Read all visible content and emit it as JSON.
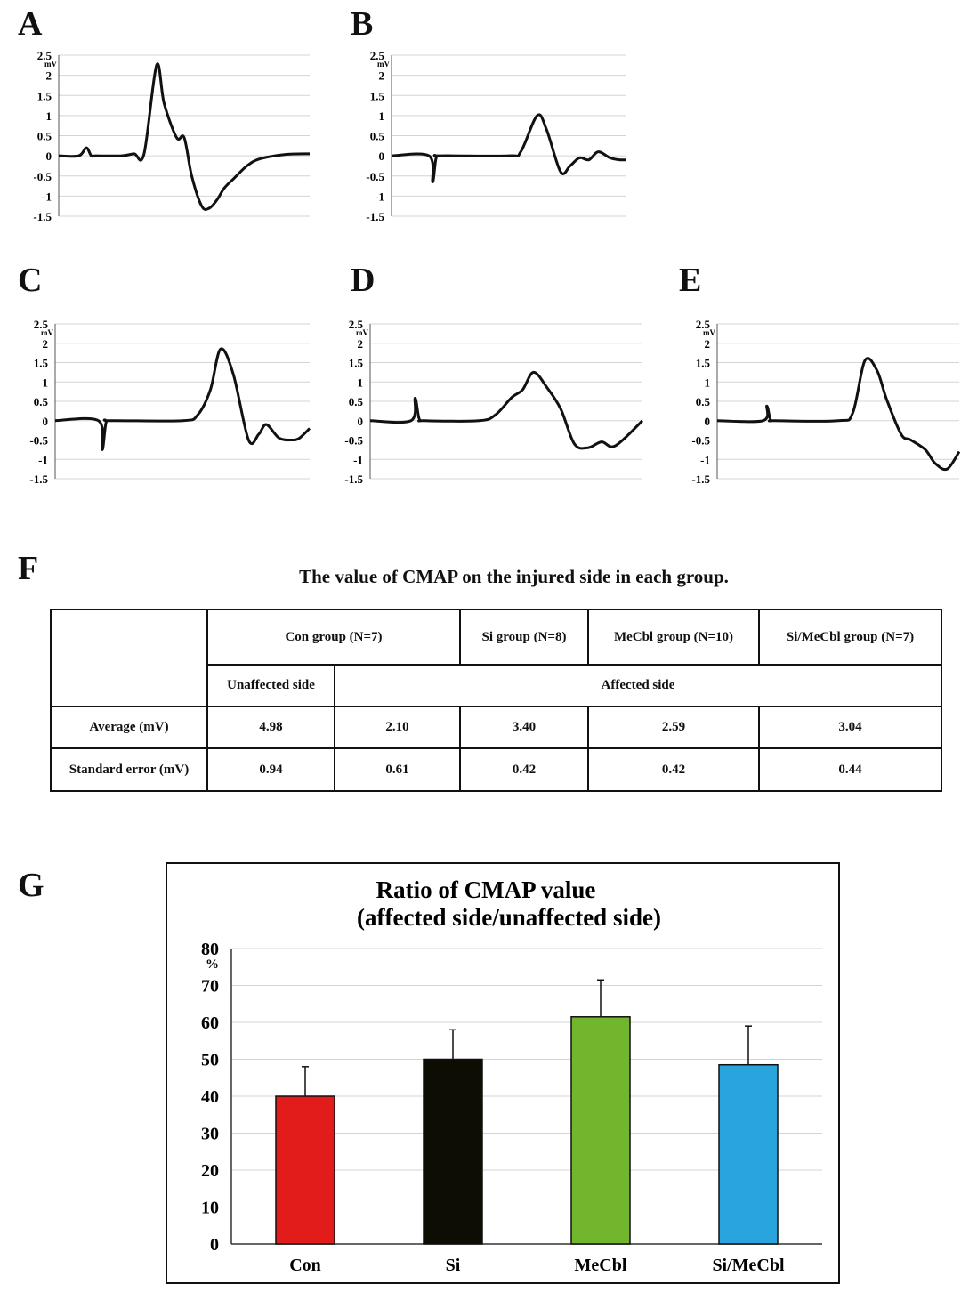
{
  "panels": [
    "A",
    "B",
    "C",
    "D",
    "E",
    "F",
    "G"
  ],
  "chart_data": [
    {
      "type": "line",
      "panel": "A",
      "ylabel": "mV",
      "yticks": [
        "2.5",
        "2",
        "1.5",
        "1",
        "0.5",
        "0",
        "-0.5",
        "-1",
        "-1.5"
      ],
      "ylim": [
        -1.5,
        2.5
      ],
      "grid": true,
      "series": [
        {
          "x": [
            0,
            0.08,
            0.11,
            0.13,
            0.15,
            0.25,
            0.3,
            0.34,
            0.39,
            0.42,
            0.47,
            0.5,
            0.53,
            0.57,
            0.6,
            0.63,
            0.66,
            0.7,
            0.75,
            0.8,
            0.9,
            1
          ],
          "y": [
            0,
            0,
            0.2,
            0,
            0,
            0,
            0.05,
            0.05,
            2.25,
            1.3,
            0.45,
            0.45,
            -0.5,
            -1.25,
            -1.3,
            -1.1,
            -0.8,
            -0.55,
            -0.25,
            -0.08,
            0.03,
            0.05
          ]
        }
      ]
    },
    {
      "type": "line",
      "panel": "B",
      "ylabel": "mV",
      "yticks": [
        "2.5",
        "2",
        "1.5",
        "1",
        "0.5",
        "0",
        "-0.5",
        "-1",
        "-1.5"
      ],
      "ylim": [
        -1.5,
        2.5
      ],
      "grid": true,
      "series": [
        {
          "x": [
            0,
            0.16,
            0.175,
            0.19,
            0.21,
            0.5,
            0.55,
            0.62,
            0.66,
            0.72,
            0.76,
            0.8,
            0.84,
            0.88,
            0.93,
            0.97,
            1
          ],
          "y": [
            0,
            0,
            -0.65,
            -0.05,
            0,
            0,
            0.1,
            1,
            0.65,
            -0.4,
            -0.25,
            -0.05,
            -0.1,
            0.1,
            -0.05,
            -0.1,
            -0.1
          ]
        }
      ]
    },
    {
      "type": "line",
      "panel": "C",
      "ylabel": "mV",
      "yticks": [
        "2.5",
        "2",
        "1.5",
        "1",
        "0.5",
        "0",
        "-0.5",
        "-1",
        "-1.5"
      ],
      "ylim": [
        -1.5,
        2.5
      ],
      "grid": true,
      "series": [
        {
          "x": [
            0,
            0.17,
            0.185,
            0.2,
            0.22,
            0.5,
            0.56,
            0.61,
            0.65,
            0.7,
            0.76,
            0.8,
            0.83,
            0.88,
            0.93,
            0.96,
            1
          ],
          "y": [
            0,
            0,
            -0.75,
            -0.05,
            0,
            0,
            0.15,
            0.8,
            1.85,
            1.2,
            -0.5,
            -0.35,
            -0.1,
            -0.45,
            -0.5,
            -0.45,
            -0.2
          ]
        }
      ]
    },
    {
      "type": "line",
      "panel": "D",
      "ylabel": "mV",
      "yticks": [
        "2.5",
        "2",
        "1.5",
        "1",
        "0.5",
        "0",
        "-0.5",
        "-1",
        "-1.5"
      ],
      "ylim": [
        -1.5,
        2.5
      ],
      "grid": true,
      "series": [
        {
          "x": [
            0,
            0.15,
            0.165,
            0.18,
            0.2,
            0.4,
            0.46,
            0.52,
            0.56,
            0.6,
            0.65,
            0.7,
            0.75,
            0.8,
            0.85,
            0.9,
            1
          ],
          "y": [
            0,
            0,
            0.58,
            0.05,
            0,
            0,
            0.15,
            0.6,
            0.8,
            1.25,
            0.85,
            0.3,
            -0.6,
            -0.7,
            -0.55,
            -0.65,
            0
          ]
        }
      ]
    },
    {
      "type": "line",
      "panel": "E",
      "ylabel": "mV",
      "yticks": [
        "2.5",
        "2",
        "1.5",
        "1",
        "0.5",
        "0",
        "-0.5",
        "-1",
        "-1.5"
      ],
      "ylim": [
        -1.5,
        2.5
      ],
      "grid": true,
      "series": [
        {
          "x": [
            0,
            0.19,
            0.205,
            0.22,
            0.24,
            0.5,
            0.56,
            0.61,
            0.66,
            0.7,
            0.76,
            0.8,
            0.86,
            0.9,
            0.95,
            1
          ],
          "y": [
            0,
            0,
            0.38,
            0.03,
            0,
            0,
            0.2,
            1.55,
            1.3,
            0.55,
            -0.35,
            -0.5,
            -0.75,
            -1.1,
            -1.25,
            -0.8
          ]
        }
      ]
    },
    {
      "type": "table",
      "panel": "F",
      "title": "The value of CMAP on the injured side in each group.",
      "group_headers": [
        "Con group (N=7)",
        "Si group (N=8)",
        "MeCbl group (N=10)",
        "Si/MeCbl group (N=7)"
      ],
      "side_headers": [
        "Unaffected side",
        "Affected side"
      ],
      "rows": [
        {
          "label": "Average (mV)",
          "values": [
            "4.98",
            "2.10",
            "3.40",
            "2.59",
            "3.04"
          ]
        },
        {
          "label": "Standard error (mV)",
          "values": [
            "0.94",
            "0.61",
            "0.42",
            "0.42",
            "0.44"
          ]
        }
      ]
    },
    {
      "type": "bar",
      "panel": "G",
      "title": "Ratio of  CMAP value",
      "subtitle": "(affected side/unaffected side)",
      "ylabel": "%",
      "ylim": [
        0,
        80
      ],
      "yticks": [
        "80",
        "70",
        "60",
        "50",
        "40",
        "30",
        "20",
        "10",
        "0"
      ],
      "grid": true,
      "categories": [
        "Con",
        "Si",
        "MeCbl",
        "Si/MeCbl"
      ],
      "values": [
        40,
        50,
        61.5,
        48.5
      ],
      "errors": [
        8,
        8,
        10,
        10.5
      ],
      "colors": [
        "#e21b1b",
        "#0d0d04",
        "#71b62c",
        "#2aa4dc"
      ]
    }
  ]
}
